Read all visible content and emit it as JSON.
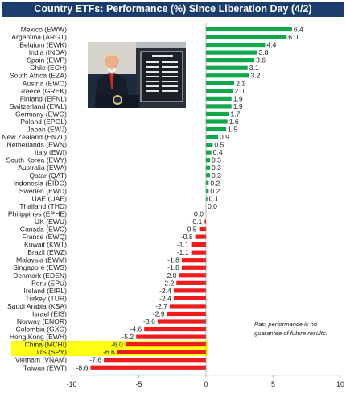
{
  "chart_data": {
    "type": "bar",
    "orientation": "horizontal",
    "title": "Country ETFs: Performance (%) Since Liberation Day (4/2)",
    "categories": [
      "Mexico (EWW)",
      "Argentina (ARGT)",
      "Belgium (EWK)",
      "India (INDA)",
      "Spain (EWP)",
      "Chile (ECH)",
      "South Africa (EZA)",
      "Austria (EWO)",
      "Greece (GREK)",
      "Finland (EFNL)",
      "Switzerland (EWL)",
      "Germany (EWG)",
      "Poland (EPOL)",
      "Japan (EWJ)",
      "New Zealand (ENZL)",
      "Netherlands (EWN)",
      "Italy (EWI)",
      "South Korea (EWY)",
      "Australia (EWA)",
      "Qatar (QAT)",
      "Indonesia (EIDO)",
      "Sweden (EWD)",
      "UAE (UAE)",
      "Thailand (THD)",
      "Philippines (EPHE)",
      "UK (EWU)",
      "Canada (EWC)",
      "France (EWQ)",
      "Kuwait (KWT)",
      "Brazil (EWZ)",
      "Malaysia (EWM)",
      "Singapore (EWS)",
      "Denmark (EDEN)",
      "Peru (EPU)",
      "Ireland (EIRL)",
      "Turkey (TUR)",
      "Saudi Arabia (KSA)",
      "Israel (EIS)",
      "Norway (ENOR)",
      "Colombia (GXG)",
      "Hong Kong (EWH)",
      "China (MCHI)",
      "US (SPY)",
      "Vietnam (VNAM)",
      "Taiwan (EWT)"
    ],
    "values": [
      6.4,
      6.0,
      4.4,
      3.8,
      3.6,
      3.1,
      3.2,
      2.1,
      2.0,
      1.9,
      1.9,
      1.7,
      1.6,
      1.5,
      0.9,
      0.5,
      0.4,
      0.3,
      0.3,
      0.3,
      0.2,
      0.2,
      0.1,
      0.0,
      0.0,
      -0.1,
      -0.5,
      -0.8,
      -1.1,
      -1.1,
      -1.8,
      -1.8,
      -2.0,
      -2.2,
      -2.4,
      -2.4,
      -2.7,
      -2.9,
      -3.6,
      -4.6,
      -5.2,
      -6.0,
      -6.6,
      -7.6,
      -8.6
    ],
    "value_labels": [
      "6.4",
      "6.0",
      "4.4",
      "3.8",
      "3.6",
      "3.1",
      "3.2",
      "2.1",
      "2.0",
      "1.9",
      "1.9",
      "1.7",
      "1.6",
      "1.5",
      "0.9",
      "0.5",
      "0.4",
      "0.3",
      "0.3",
      "0.3",
      "0.2",
      "0.2",
      "0.1",
      "0.0",
      "0.0",
      "-0.1",
      "-0.5",
      "-0.8",
      "-1.1",
      "-1.1",
      "-1.8",
      "-1.8",
      "-2.0",
      "-2.2",
      "-2.4",
      "-2.4",
      "-2.7",
      "-2.9",
      "-3.6",
      "-4.6",
      "-5.2",
      "-6.0",
      "-6.6",
      "-7.6",
      "-8.6"
    ],
    "highlighted": [
      "China (MCHI)",
      "US (SPY)"
    ],
    "xlim": [
      -10,
      10
    ],
    "xticks": [
      "-10",
      "-5",
      "0",
      "5",
      "10"
    ],
    "grid": false,
    "colors": {
      "positive": "#10a84a",
      "negative": "#ee1c1c",
      "highlight": "#ffff14",
      "title_bg": "#1b3d6e"
    }
  },
  "footnote": "Past performance is no guarantee of future results.",
  "photo": {
    "icon": "press-conference-photo"
  }
}
